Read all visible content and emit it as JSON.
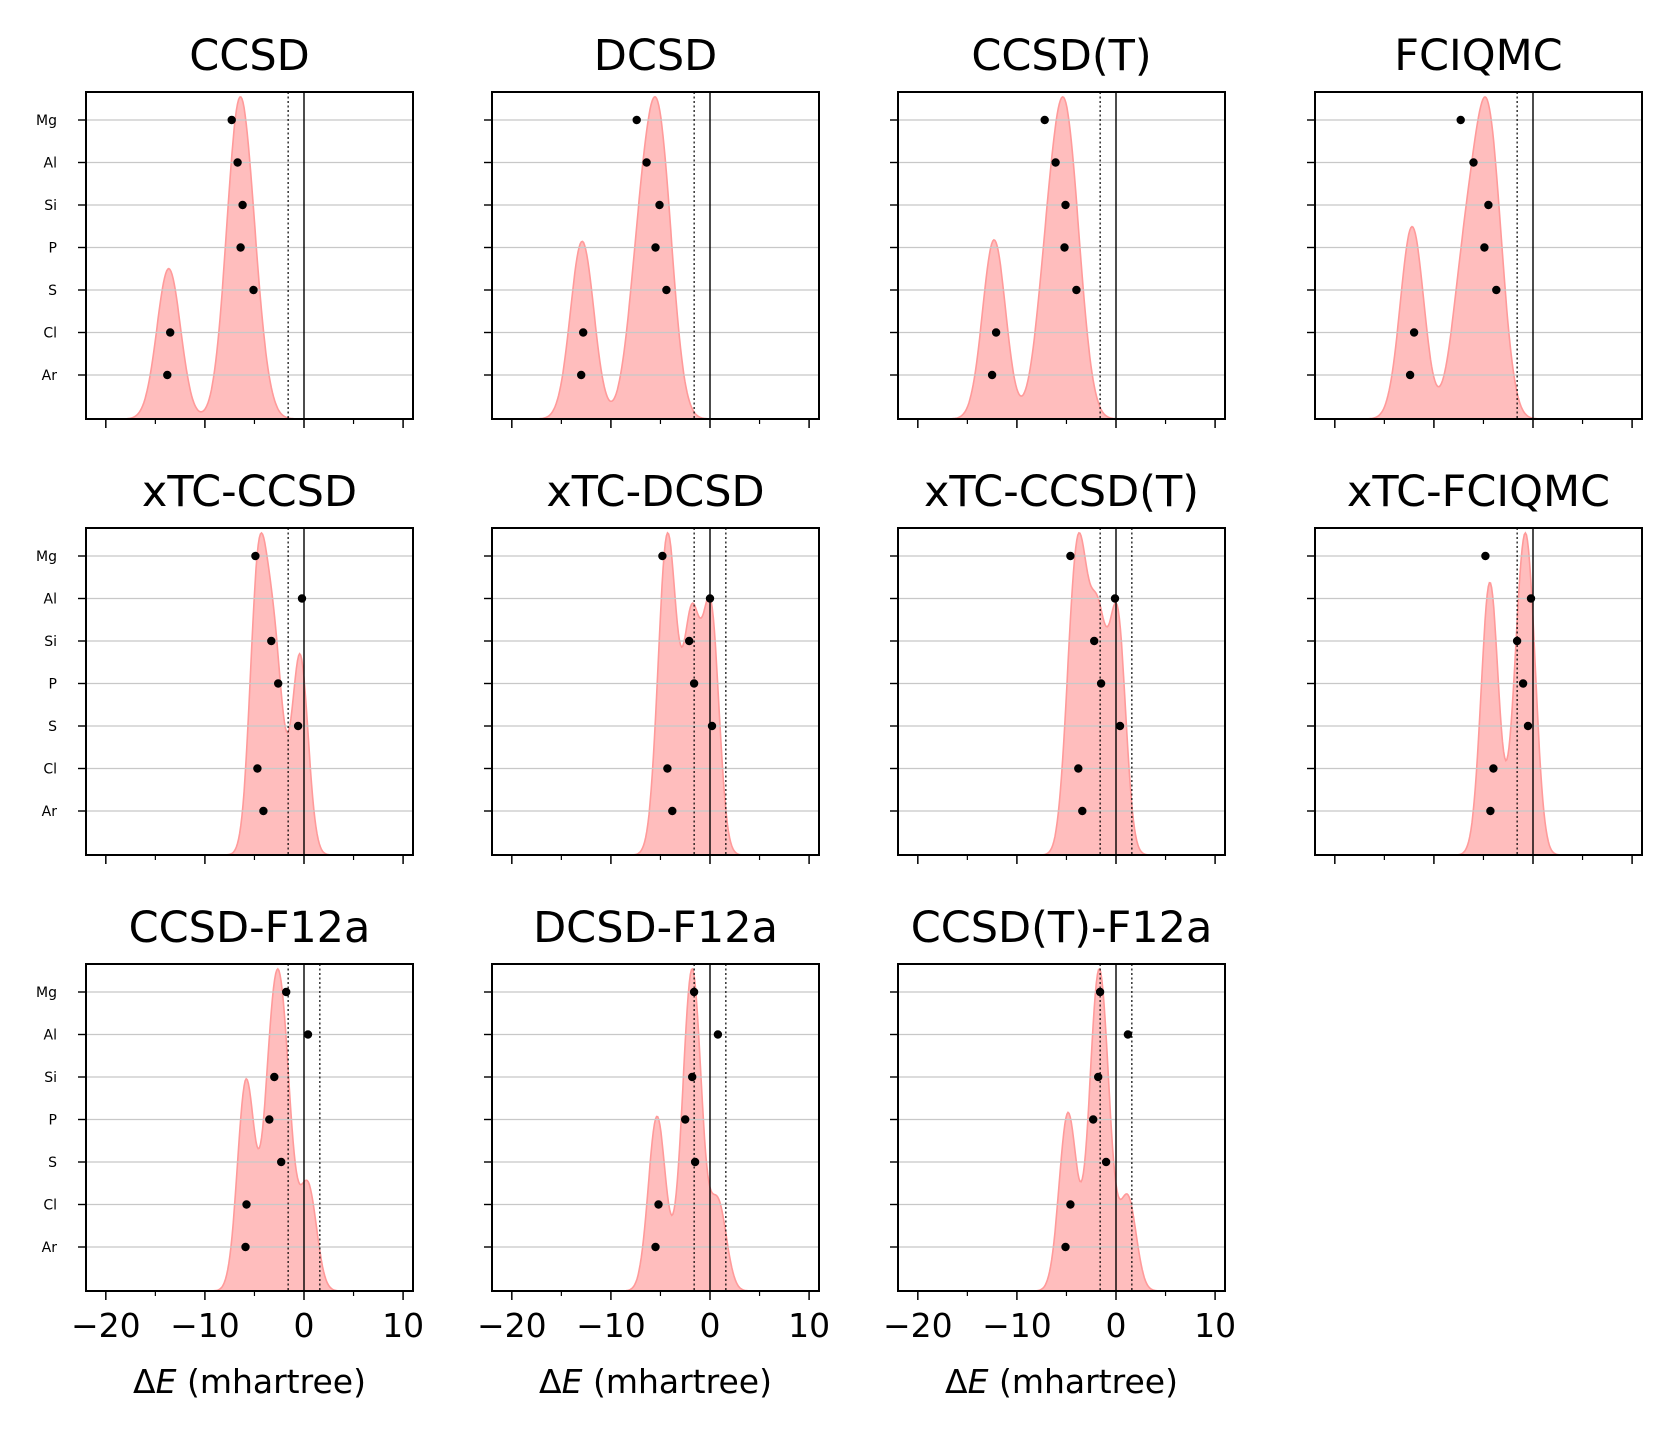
{
  "chart_data": {
    "type": "scatter",
    "description": "Grid of density (KDE) plots with per-atom error markers",
    "xlim": [
      -22,
      11
    ],
    "xticks": [
      -20,
      -10,
      0,
      10
    ],
    "xtick_labels": [
      "−20",
      "−10",
      "0",
      "10"
    ],
    "x_minor_ticks": [
      -15,
      -5,
      5
    ],
    "xlabel_symbol": "Δ",
    "xlabel_var": "E",
    "xlabel_unit": " (mhartree)",
    "categories": [
      "Mg",
      "Al",
      "Si",
      "P",
      "S",
      "Cl",
      "Ar"
    ],
    "chemical_accuracy": 1.6,
    "colors": {
      "fill": "#ffbdbd",
      "fill_line": "#ff9a9a",
      "marker": "#000000",
      "grid": "#c8c8c8"
    },
    "panels": [
      {
        "title": "CCSD",
        "x": [
          -7.3,
          -6.7,
          -6.2,
          -6.4,
          -5.1,
          -13.5,
          -13.8
        ]
      },
      {
        "title": "DCSD",
        "x": [
          -7.4,
          -6.4,
          -5.1,
          -5.5,
          -4.4,
          -12.8,
          -13.0
        ]
      },
      {
        "title": "CCSD(T)",
        "x": [
          -7.2,
          -6.1,
          -5.1,
          -5.2,
          -4.0,
          -12.1,
          -12.5
        ]
      },
      {
        "title": "FCIQMC",
        "x": [
          -7.3,
          -6.0,
          -4.5,
          -4.9,
          -3.7,
          -12.0,
          -12.4
        ]
      },
      {
        "title": "xTC-CCSD",
        "x": [
          -4.9,
          -0.2,
          -3.3,
          -2.6,
          -0.6,
          -4.7,
          -4.1
        ]
      },
      {
        "title": "xTC-DCSD",
        "x": [
          -4.8,
          0.0,
          -2.1,
          -1.6,
          0.2,
          -4.3,
          -3.8
        ]
      },
      {
        "title": "xTC-CCSD(T)",
        "x": [
          -4.6,
          -0.1,
          -2.2,
          -1.5,
          0.4,
          -3.8,
          -3.4
        ]
      },
      {
        "title": "xTC-FCIQMC",
        "x": [
          -4.8,
          -0.2,
          -1.6,
          -1.0,
          -0.5,
          -4.0,
          -4.3
        ]
      },
      {
        "title": "CCSD-F12a",
        "x": [
          -1.8,
          0.4,
          -3.0,
          -3.5,
          -2.3,
          -5.8,
          -5.9
        ]
      },
      {
        "title": "DCSD-F12a",
        "x": [
          -1.6,
          0.8,
          -1.8,
          -2.5,
          -1.5,
          -5.2,
          -5.5
        ]
      },
      {
        "title": "CCSD(T)-F12a",
        "x": [
          -1.6,
          1.2,
          -1.8,
          -2.3,
          -1.0,
          -4.6,
          -5.1
        ]
      }
    ]
  }
}
